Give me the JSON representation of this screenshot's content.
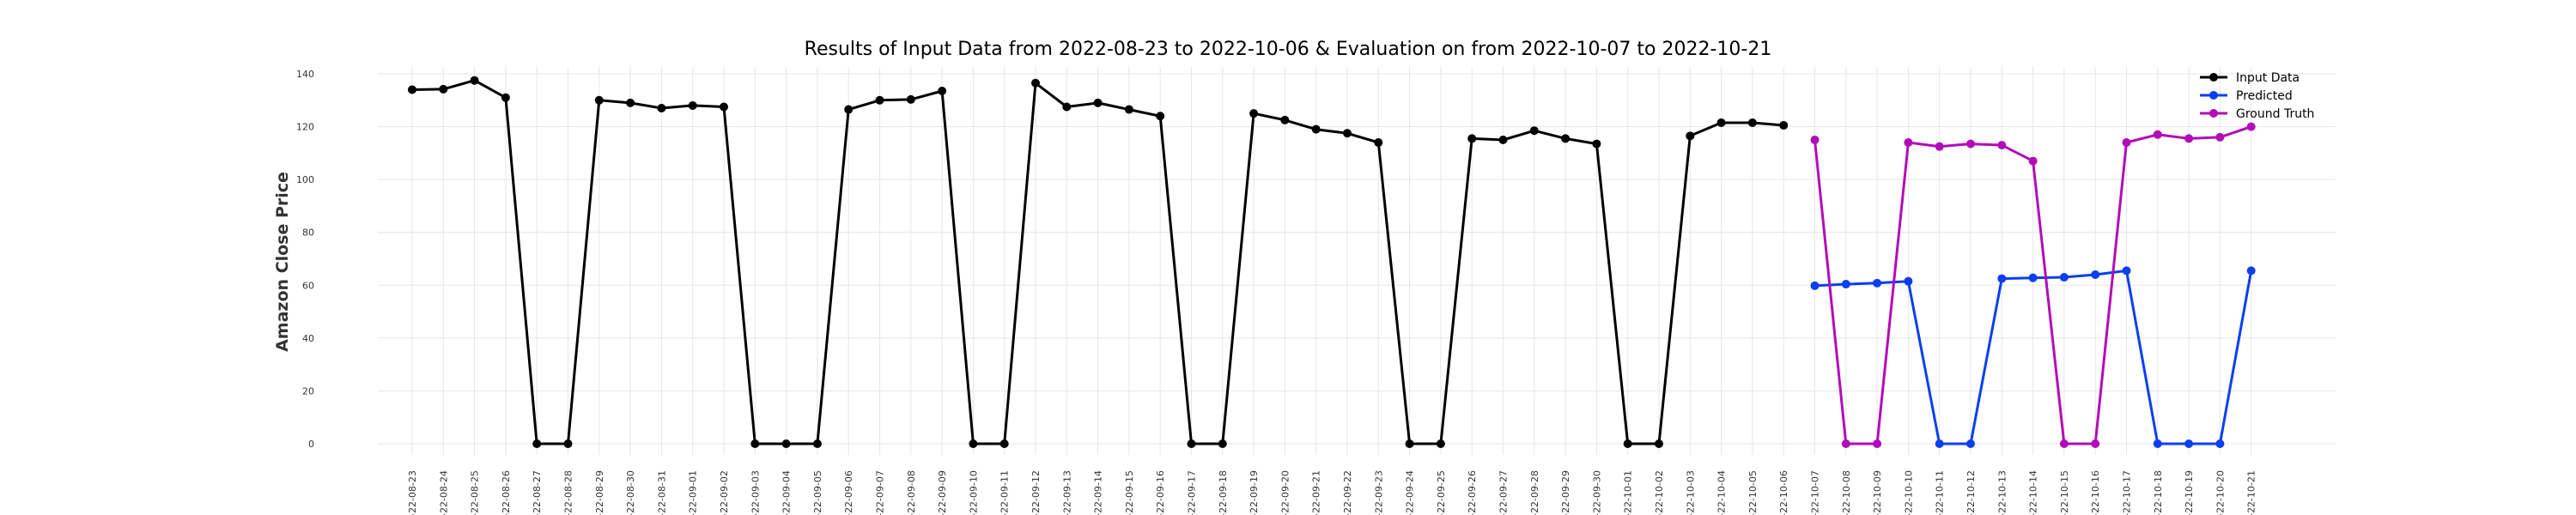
{
  "chart_data": {
    "type": "line",
    "title": "Results of Input Data from 2022-08-23 to 2022-10-06 & Evaluation on from 2022-10-07 to 2022-10-21",
    "xlabel": "",
    "ylabel": "Amazon Close Price",
    "ylim": [
      0,
      140
    ],
    "yticks": [
      0,
      20,
      40,
      60,
      80,
      100,
      120,
      140
    ],
    "grid": true,
    "legend_position": "top-right",
    "x": [
      "2022-08-23",
      "2022-08-24",
      "2022-08-25",
      "2022-08-26",
      "2022-08-27",
      "2022-08-28",
      "2022-08-29",
      "2022-08-30",
      "2022-08-31",
      "2022-09-01",
      "2022-09-02",
      "2022-09-03",
      "2022-09-04",
      "2022-09-05",
      "2022-09-06",
      "2022-09-07",
      "2022-09-08",
      "2022-09-09",
      "2022-09-10",
      "2022-09-11",
      "2022-09-12",
      "2022-09-13",
      "2022-09-14",
      "2022-09-15",
      "2022-09-16",
      "2022-09-17",
      "2022-09-18",
      "2022-09-19",
      "2022-09-20",
      "2022-09-21",
      "2022-09-22",
      "2022-09-23",
      "2022-09-24",
      "2022-09-25",
      "2022-09-26",
      "2022-09-27",
      "2022-09-28",
      "2022-09-29",
      "2022-09-30",
      "2022-10-01",
      "2022-10-02",
      "2022-10-03",
      "2022-10-04",
      "2022-10-05",
      "2022-10-06",
      "2022-10-07",
      "2022-10-08",
      "2022-10-09",
      "2022-10-10",
      "2022-10-11",
      "2022-10-12",
      "2022-10-13",
      "2022-10-14",
      "2022-10-15",
      "2022-10-16",
      "2022-10-17",
      "2022-10-18",
      "2022-10-19",
      "2022-10-20",
      "2022-10-21"
    ],
    "x_tick_labels": [
      "-22-08-23",
      "-22-08-24",
      "-22-08-25",
      "-22-08-26",
      "-22-08-27",
      "-22-08-28",
      "-22-08-29",
      "-22-08-30",
      "-22-08-31",
      "-22-09-01",
      "-22-09-02",
      "-22-09-03",
      "-22-09-04",
      "-22-09-05",
      "-22-09-06",
      "-22-09-07",
      "-22-09-08",
      "-22-09-09",
      "-22-09-10",
      "-22-09-11",
      "-22-09-12",
      "-22-09-13",
      "-22-09-14",
      "-22-09-15",
      "-22-09-16",
      "-22-09-17",
      "-22-09-18",
      "-22-09-19",
      "-22-09-20",
      "-22-09-21",
      "-22-09-22",
      "-22-09-23",
      "-22-09-24",
      "-22-09-25",
      "-22-09-26",
      "-22-09-27",
      "-22-09-28",
      "-22-09-29",
      "-22-09-30",
      "-22-10-01",
      "-22-10-02",
      "-22-10-03",
      "-22-10-04",
      "-22-10-05",
      "-22-10-06",
      "-22-10-07",
      "-22-10-08",
      "-22-10-09",
      "-22-10-10",
      "-22-10-11",
      "-22-10-12",
      "-22-10-13",
      "-22-10-14",
      "-22-10-15",
      "-22-10-16",
      "-22-10-17",
      "-22-10-18",
      "-22-10-19",
      "-22-10-20",
      "-22-10-21"
    ],
    "series": [
      {
        "name": "Input Data",
        "color": "#000000",
        "x": [
          "2022-08-23",
          "2022-08-24",
          "2022-08-25",
          "2022-08-26",
          "2022-08-27",
          "2022-08-28",
          "2022-08-29",
          "2022-08-30",
          "2022-08-31",
          "2022-09-01",
          "2022-09-02",
          "2022-09-03",
          "2022-09-04",
          "2022-09-05",
          "2022-09-06",
          "2022-09-07",
          "2022-09-08",
          "2022-09-09",
          "2022-09-10",
          "2022-09-11",
          "2022-09-12",
          "2022-09-13",
          "2022-09-14",
          "2022-09-15",
          "2022-09-16",
          "2022-09-17",
          "2022-09-18",
          "2022-09-19",
          "2022-09-20",
          "2022-09-21",
          "2022-09-22",
          "2022-09-23",
          "2022-09-24",
          "2022-09-25",
          "2022-09-26",
          "2022-09-27",
          "2022-09-28",
          "2022-09-29",
          "2022-09-30",
          "2022-10-01",
          "2022-10-02",
          "2022-10-03",
          "2022-10-04",
          "2022-10-05",
          "2022-10-06"
        ],
        "values": [
          134,
          134.2,
          137.5,
          131,
          0,
          0,
          130,
          129,
          127,
          128,
          127.5,
          0,
          0,
          0,
          126.5,
          130,
          130.3,
          133.5,
          0,
          0,
          136.5,
          127.5,
          129,
          126.5,
          124,
          0,
          0,
          125,
          122.5,
          119,
          117.5,
          114,
          0,
          0,
          115.5,
          115,
          118.5,
          115.5,
          113.5,
          0,
          0,
          116.5,
          121.5,
          121.5,
          120.5
        ]
      },
      {
        "name": "Predicted",
        "color": "#0a3ff0",
        "x": [
          "2022-10-07",
          "2022-10-08",
          "2022-10-09",
          "2022-10-10",
          "2022-10-11",
          "2022-10-12",
          "2022-10-13",
          "2022-10-14",
          "2022-10-15",
          "2022-10-16",
          "2022-10-17",
          "2022-10-18",
          "2022-10-19",
          "2022-10-20",
          "2022-10-21"
        ],
        "values": [
          59.8,
          60.4,
          60.8,
          61.5,
          0,
          0,
          62.5,
          62.8,
          63,
          64,
          65.5,
          0,
          0,
          0,
          65.5
        ]
      },
      {
        "name": "Ground Truth",
        "color": "#b20cb8",
        "x": [
          "2022-10-07",
          "2022-10-08",
          "2022-10-09",
          "2022-10-10",
          "2022-10-11",
          "2022-10-12",
          "2022-10-13",
          "2022-10-14",
          "2022-10-15",
          "2022-10-16",
          "2022-10-17",
          "2022-10-18",
          "2022-10-19",
          "2022-10-20",
          "2022-10-21"
        ],
        "values": [
          115,
          0,
          0,
          114,
          112.5,
          113.5,
          113,
          107,
          0,
          0,
          114,
          117,
          115.5,
          116,
          120
        ]
      }
    ]
  }
}
